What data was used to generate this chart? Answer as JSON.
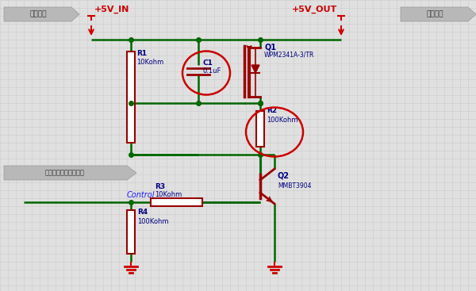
{
  "bg_color": "#e0e0e0",
  "grid_color": "#cccccc",
  "wire_color": "#006600",
  "red_color": "#cc0000",
  "comp_color": "#990000",
  "label_color": "#000080",
  "highlight_color": "#cc0000",
  "label_5vin": "+5V_IN",
  "label_5vout": "+5V_OUT",
  "label_box_left": "电源输入",
  "label_box_right": "电源输出",
  "label_control_box": "输入信号控制电源开关",
  "label_control": "Control",
  "q1_label": "Q1",
  "q1_type": "WPM2341A-3/TR",
  "q2_label": "Q2",
  "q2_type": "MMBT3904",
  "c1_label": "C1",
  "c1_value": "0.1uF",
  "r1_label": "R1",
  "r1_value": "10Kohm",
  "r2_label": "R2",
  "r2_value": "100Kohm",
  "r3_label": "R3",
  "r3_value": "10Kohm",
  "r4_label": "R4",
  "r4_value": "100Kohm"
}
